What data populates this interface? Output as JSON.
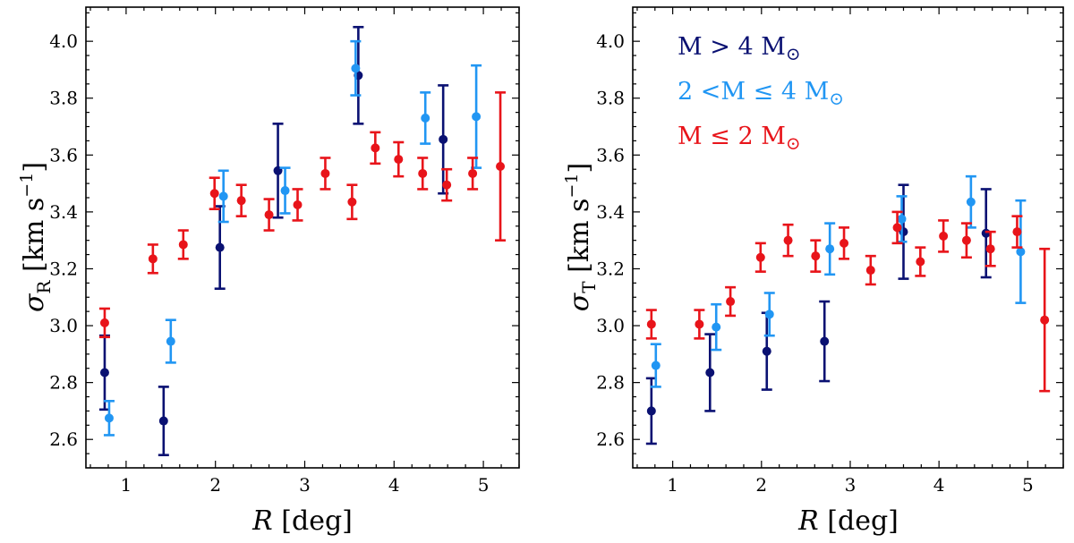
{
  "colors": {
    "high_mass": "#0a1172",
    "mid_mass": "#2196f3",
    "low_mass": "#e8141a"
  },
  "chart_data": [
    {
      "type": "scatter",
      "panel": "left",
      "xlabel_symbol": "R",
      "xlabel_unit": "[deg]",
      "ylabel_symbol": "σ",
      "ylabel_sub": "R",
      "ylabel_unit": "[km s",
      "ylabel_exp": "−1",
      "ylabel_close": "]",
      "xlim": [
        0.55,
        5.4
      ],
      "ylim": [
        2.5,
        4.12
      ],
      "xticks": [
        "1",
        "2",
        "3",
        "4",
        "5"
      ],
      "yticks": [
        "2.6",
        "2.8",
        "3.0",
        "3.2",
        "3.4",
        "3.6",
        "3.8",
        "4.0"
      ],
      "series": [
        {
          "name": "high",
          "points": [
            {
              "x": 0.76,
              "y": 2.835,
              "err": 0.13
            },
            {
              "x": 1.42,
              "y": 2.665,
              "err": 0.12
            },
            {
              "x": 2.05,
              "y": 3.275,
              "err": 0.145
            },
            {
              "x": 2.7,
              "y": 3.545,
              "err": 0.165
            },
            {
              "x": 3.6,
              "y": 3.88,
              "err": 0.17
            },
            {
              "x": 4.55,
              "y": 3.655,
              "err": 0.19
            }
          ]
        },
        {
          "name": "mid",
          "points": [
            {
              "x": 0.81,
              "y": 2.675,
              "err": 0.06
            },
            {
              "x": 1.5,
              "y": 2.945,
              "err": 0.075
            },
            {
              "x": 2.09,
              "y": 3.455,
              "err": 0.09
            },
            {
              "x": 2.78,
              "y": 3.475,
              "err": 0.08
            },
            {
              "x": 3.57,
              "y": 3.905,
              "err": 0.095
            },
            {
              "x": 4.35,
              "y": 3.73,
              "err": 0.09
            },
            {
              "x": 4.92,
              "y": 3.735,
              "err": 0.18
            }
          ]
        },
        {
          "name": "low",
          "points": [
            {
              "x": 0.76,
              "y": 3.01,
              "err": 0.05
            },
            {
              "x": 1.3,
              "y": 3.235,
              "err": 0.05
            },
            {
              "x": 1.64,
              "y": 3.285,
              "err": 0.05
            },
            {
              "x": 1.99,
              "y": 3.465,
              "err": 0.055
            },
            {
              "x": 2.29,
              "y": 3.44,
              "err": 0.055
            },
            {
              "x": 2.6,
              "y": 3.39,
              "err": 0.055
            },
            {
              "x": 2.92,
              "y": 3.425,
              "err": 0.055
            },
            {
              "x": 3.23,
              "y": 3.535,
              "err": 0.055
            },
            {
              "x": 3.53,
              "y": 3.435,
              "err": 0.06
            },
            {
              "x": 3.79,
              "y": 3.625,
              "err": 0.055
            },
            {
              "x": 4.05,
              "y": 3.585,
              "err": 0.06
            },
            {
              "x": 4.32,
              "y": 3.535,
              "err": 0.055
            },
            {
              "x": 4.59,
              "y": 3.495,
              "err": 0.055
            },
            {
              "x": 4.88,
              "y": 3.535,
              "err": 0.055
            },
            {
              "x": 5.19,
              "y": 3.56,
              "err": 0.26
            }
          ]
        }
      ]
    },
    {
      "type": "scatter",
      "panel": "right",
      "xlabel_symbol": "R",
      "xlabel_unit": "[deg]",
      "ylabel_symbol": "σ",
      "ylabel_sub": "T",
      "ylabel_unit": "[km s",
      "ylabel_exp": "−1",
      "ylabel_close": "]",
      "xlim": [
        0.55,
        5.4
      ],
      "ylim": [
        2.5,
        4.12
      ],
      "xticks": [
        "1",
        "2",
        "3",
        "4",
        "5"
      ],
      "yticks": [
        "2.6",
        "2.8",
        "3.0",
        "3.2",
        "3.4",
        "3.6",
        "3.8",
        "4.0"
      ],
      "legend": [
        {
          "series": "high",
          "label_pre": "M",
          "label_op": ">",
          "label_num": "4",
          "label_unit": "M",
          "label_sym": "⊙"
        },
        {
          "series": "mid",
          "label_pre": "2",
          "label_op": "<M ≤",
          "label_num": "4",
          "label_unit": "M",
          "label_sym": "⊙"
        },
        {
          "series": "low",
          "label_pre": "M",
          "label_op": "≤",
          "label_num": "2",
          "label_unit": "M",
          "label_sym": "⊙"
        }
      ],
      "series": [
        {
          "name": "high",
          "points": [
            {
              "x": 0.76,
              "y": 2.7,
              "err": 0.115
            },
            {
              "x": 1.42,
              "y": 2.835,
              "err": 0.135
            },
            {
              "x": 2.06,
              "y": 2.91,
              "err": 0.135
            },
            {
              "x": 2.71,
              "y": 2.945,
              "err": 0.14
            },
            {
              "x": 3.6,
              "y": 3.33,
              "err": 0.165
            },
            {
              "x": 4.53,
              "y": 3.325,
              "err": 0.155
            }
          ]
        },
        {
          "name": "mid",
          "points": [
            {
              "x": 0.81,
              "y": 2.86,
              "err": 0.075
            },
            {
              "x": 1.49,
              "y": 2.995,
              "err": 0.08
            },
            {
              "x": 2.09,
              "y": 3.04,
              "err": 0.075
            },
            {
              "x": 2.77,
              "y": 3.27,
              "err": 0.09
            },
            {
              "x": 3.58,
              "y": 3.375,
              "err": 0.08
            },
            {
              "x": 4.36,
              "y": 3.435,
              "err": 0.09
            },
            {
              "x": 4.92,
              "y": 3.26,
              "err": 0.18
            }
          ]
        },
        {
          "name": "low",
          "points": [
            {
              "x": 0.76,
              "y": 3.005,
              "err": 0.05
            },
            {
              "x": 1.3,
              "y": 3.005,
              "err": 0.05
            },
            {
              "x": 1.65,
              "y": 3.085,
              "err": 0.05
            },
            {
              "x": 1.99,
              "y": 3.24,
              "err": 0.05
            },
            {
              "x": 2.3,
              "y": 3.3,
              "err": 0.055
            },
            {
              "x": 2.61,
              "y": 3.245,
              "err": 0.055
            },
            {
              "x": 2.93,
              "y": 3.29,
              "err": 0.055
            },
            {
              "x": 3.23,
              "y": 3.195,
              "err": 0.05
            },
            {
              "x": 3.53,
              "y": 3.345,
              "err": 0.055
            },
            {
              "x": 3.79,
              "y": 3.225,
              "err": 0.05
            },
            {
              "x": 4.05,
              "y": 3.315,
              "err": 0.055
            },
            {
              "x": 4.31,
              "y": 3.3,
              "err": 0.06
            },
            {
              "x": 4.58,
              "y": 3.27,
              "err": 0.06
            },
            {
              "x": 4.88,
              "y": 3.33,
              "err": 0.055
            },
            {
              "x": 5.19,
              "y": 3.02,
              "err": 0.25
            }
          ]
        }
      ]
    }
  ]
}
